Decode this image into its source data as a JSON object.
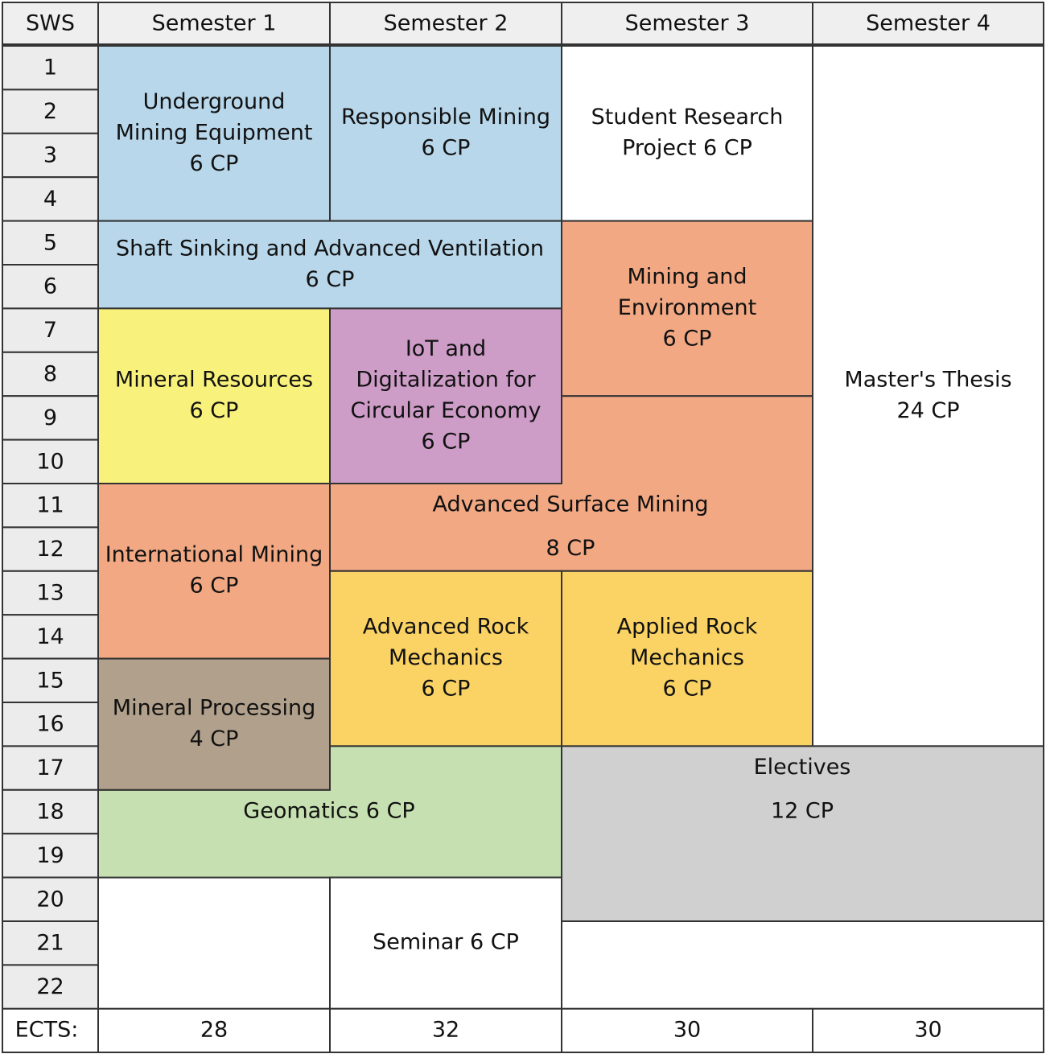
{
  "header": {
    "corner": "SWS",
    "semesters": [
      "Semester 1",
      "Semester 2",
      "Semester 3",
      "Semester 4"
    ]
  },
  "sws": [
    1,
    2,
    3,
    4,
    5,
    6,
    7,
    8,
    9,
    10,
    11,
    12,
    13,
    14,
    15,
    16,
    17,
    18,
    19,
    20,
    21,
    22
  ],
  "modules": [
    {
      "lines": [
        "Underground",
        "Mining Equipment",
        "6 CP"
      ]
    },
    {
      "lines": [
        "Responsible Mining",
        "6 CP"
      ]
    },
    {
      "lines": [
        "Student Research",
        "Project 6 CP"
      ]
    },
    {
      "lines": [
        "Master's Thesis",
        "24 CP"
      ]
    },
    {
      "lines": [
        "Shaft Sinking and Advanced Ventilation",
        "6 CP"
      ]
    },
    {
      "lines": [
        "Mining and",
        "Environment",
        "6 CP"
      ]
    },
    {
      "lines": [
        "Mineral Resources",
        "6 CP"
      ]
    },
    {
      "lines": [
        "IoT and",
        "Digitalization for",
        "Circular Economy",
        "6 CP"
      ]
    },
    {
      "lines": [
        "Advanced Surface Mining",
        "8 CP"
      ]
    },
    {
      "lines": [
        "International Mining",
        "6 CP"
      ]
    },
    {
      "lines": [
        "Advanced Rock",
        "Mechanics",
        "6 CP"
      ]
    },
    {
      "lines": [
        "Applied Rock",
        "Mechanics",
        "6 CP"
      ]
    },
    {
      "lines": [
        "Geomatics 6 CP"
      ]
    },
    {
      "lines": [
        "Mineral Processing",
        "4 CP"
      ]
    },
    {
      "lines": [
        "Electives",
        "12 CP"
      ]
    },
    {
      "lines": [
        "Seminar 6 CP"
      ]
    }
  ],
  "footer": {
    "label": "ECTS:",
    "totals": [
      28,
      32,
      30,
      30
    ]
  }
}
